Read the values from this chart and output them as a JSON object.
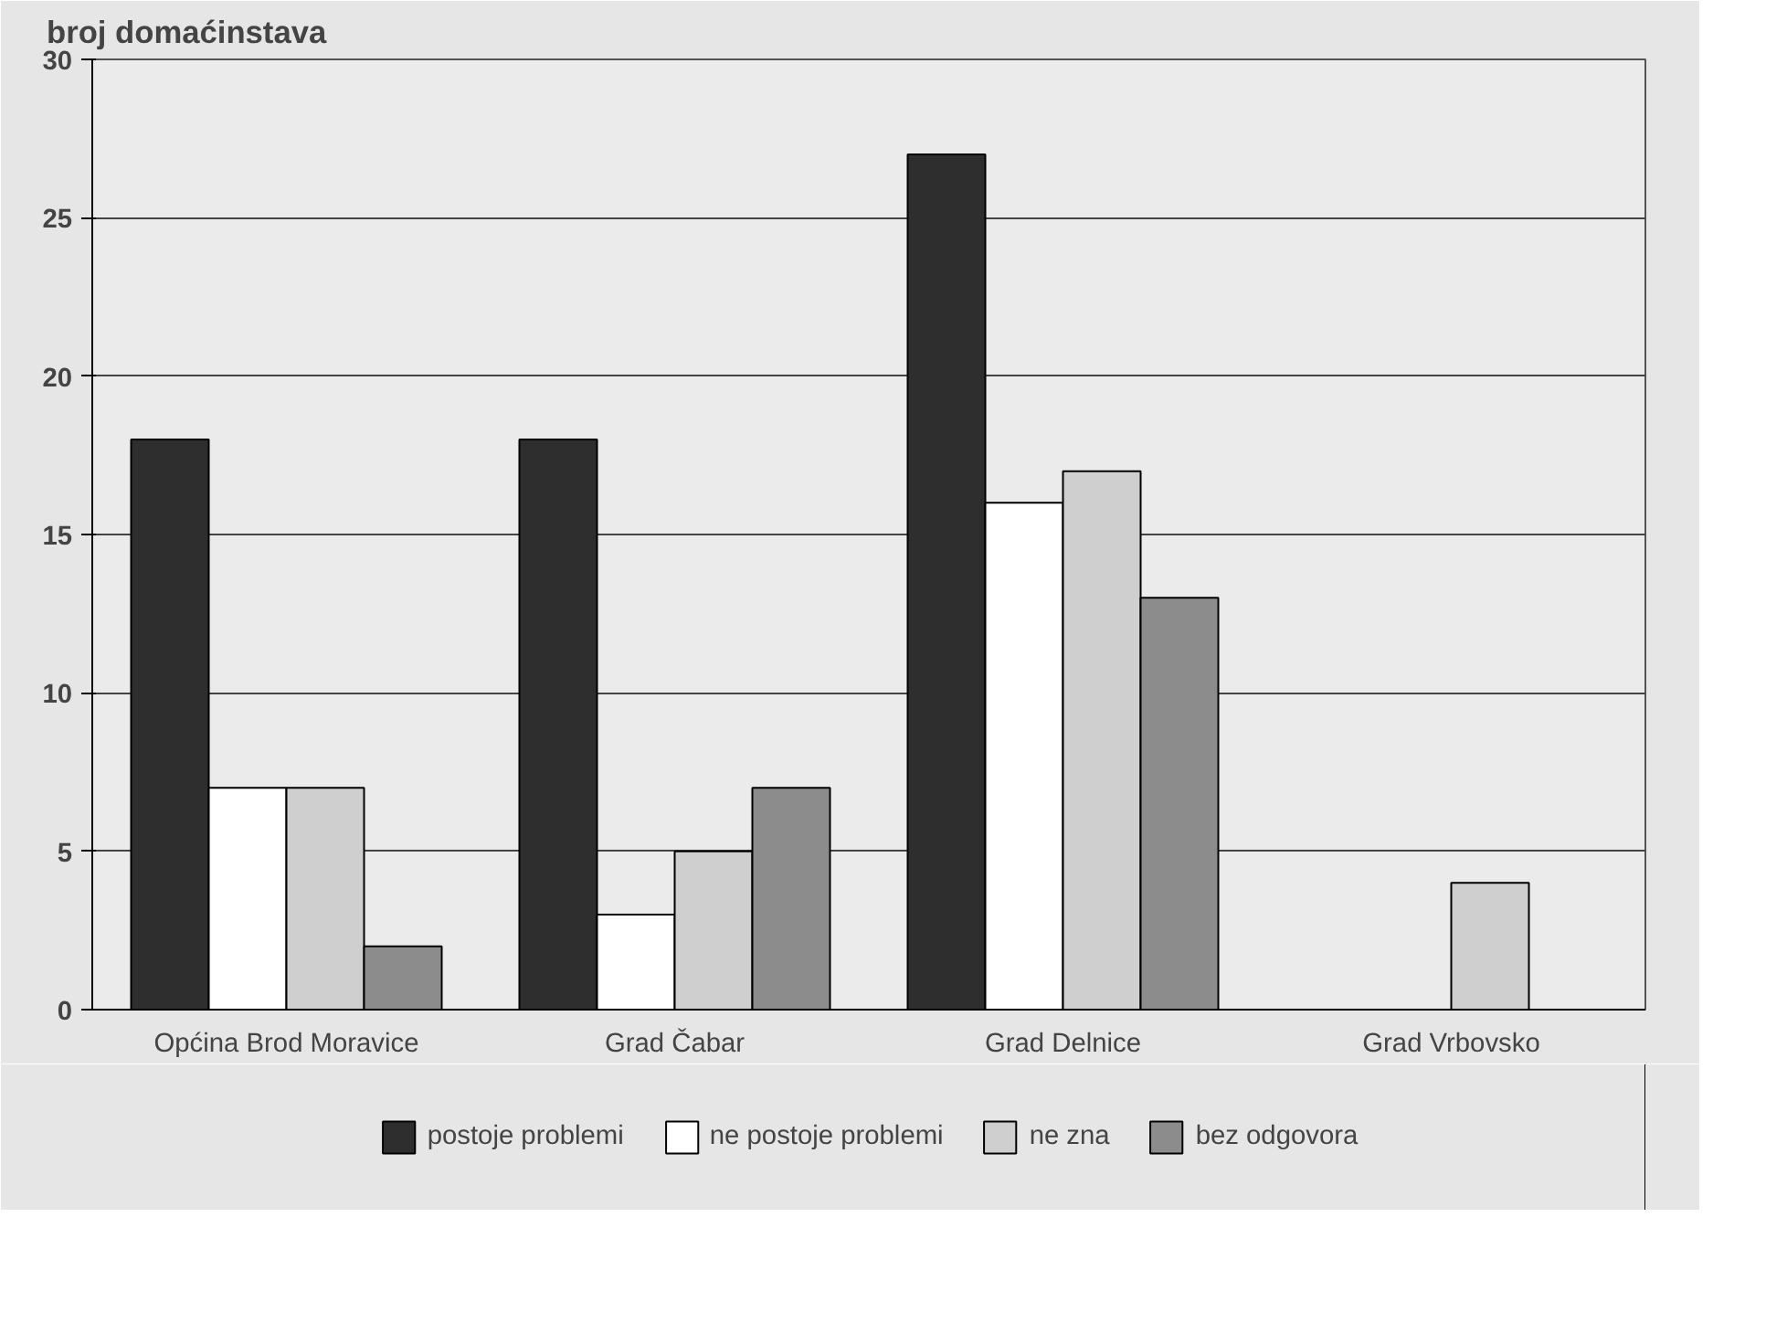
{
  "chart_data": {
    "type": "bar",
    "ylabel": "broj domaćinstava",
    "categories": [
      "Općina Brod Moravice",
      "Grad Čabar",
      "Grad Delnice",
      "Grad Vrbovsko"
    ],
    "series": [
      {
        "name": "postoje problemi",
        "color": "#2e2e2e",
        "values": [
          18,
          18,
          27,
          null
        ]
      },
      {
        "name": "ne postoje problemi",
        "color": "#ffffff",
        "values": [
          7,
          3,
          16,
          null
        ]
      },
      {
        "name": "ne zna",
        "color": "#cfcfcf",
        "values": [
          7,
          5,
          17,
          4
        ]
      },
      {
        "name": "bez odgovora",
        "color": "#8c8c8c",
        "values": [
          2,
          7,
          13,
          null
        ]
      }
    ],
    "ylim": [
      0,
      30
    ],
    "yticks": [
      0,
      5,
      10,
      15,
      20,
      25,
      30
    ],
    "grid": "y",
    "legend": "bottom"
  }
}
